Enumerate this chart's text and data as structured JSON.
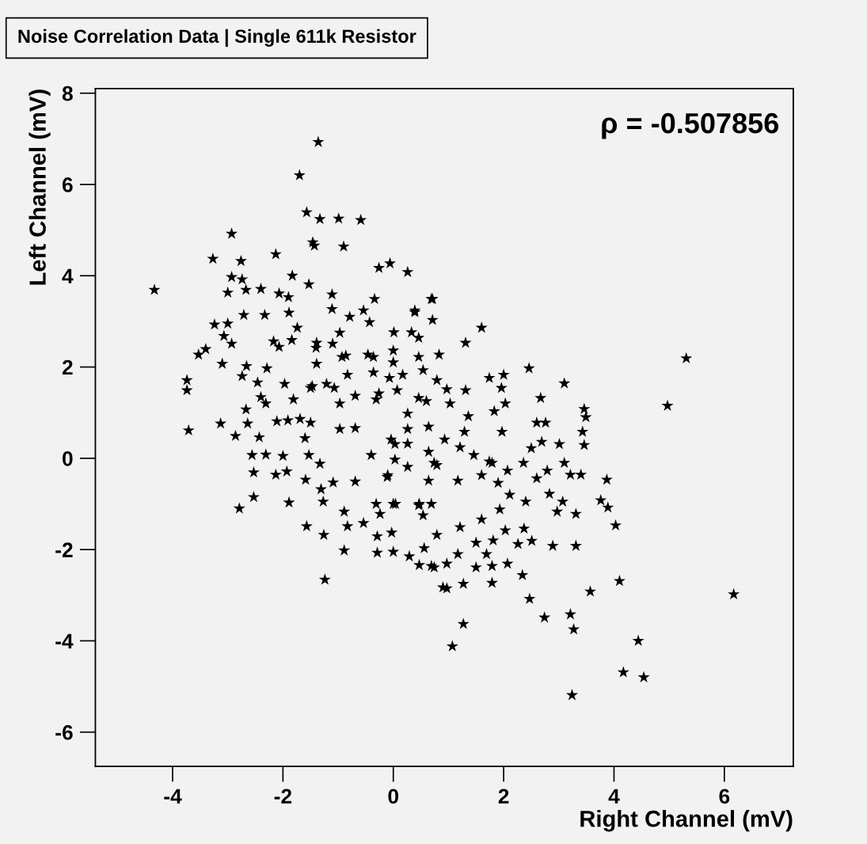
{
  "chart_data": {
    "type": "scatter",
    "title": "Noise Correlation Data | Single 611k Resistor",
    "xlabel": "Right Channel (mV)",
    "ylabel": "Left Channel (mV)",
    "annotations": [
      "ρ = -0.507856"
    ],
    "xlim": [
      -5.4,
      7.25
    ],
    "ylim": [
      -6.75,
      8.1
    ],
    "xticks": [
      -4,
      -2,
      0,
      2,
      4,
      6
    ],
    "yticks": [
      -6,
      -4,
      -2,
      0,
      2,
      4,
      6,
      8
    ],
    "grid": false,
    "legend": false,
    "marker": "star",
    "series": [
      {
        "color": "#000000",
        "x": [
          -4.33,
          -3.74,
          -3.74,
          -3.71,
          -3.53,
          -3.4,
          -3.27,
          -3.24,
          -3.1,
          -3.13,
          -3.07,
          -3.0,
          -3.0,
          -2.93,
          -2.93,
          -2.93,
          -2.86,
          -2.79,
          -2.76,
          -2.74,
          -2.74,
          -2.71,
          -2.67,
          -2.67,
          -2.66,
          -2.64,
          -2.56,
          -2.53,
          -2.53,
          -2.46,
          -2.43,
          -2.4,
          -2.4,
          -2.33,
          -2.31,
          -2.31,
          -2.29,
          -2.17,
          -2.13,
          -2.13,
          -2.11,
          -2.07,
          -2.07,
          -2.0,
          -1.97,
          -1.93,
          -1.91,
          -1.9,
          -1.89,
          -1.89,
          -1.84,
          -1.83,
          -1.81,
          -1.74,
          -1.7,
          -1.69,
          -1.6,
          -1.59,
          -1.57,
          -1.57,
          -1.53,
          -1.53,
          -1.5,
          -1.5,
          -1.47,
          -1.46,
          -1.43,
          -1.4,
          -1.39,
          -1.39,
          -1.36,
          -1.33,
          -1.33,
          -1.31,
          -1.27,
          -1.26,
          -1.24,
          -1.21,
          -1.11,
          -1.11,
          -1.1,
          -1.09,
          -1.07,
          -0.99,
          -0.97,
          -0.97,
          -0.97,
          -0.93,
          -0.9,
          -0.89,
          -0.89,
          -0.86,
          -0.83,
          -0.83,
          -0.79,
          -0.69,
          -0.69,
          -0.69,
          -0.59,
          -0.54,
          -0.54,
          -0.46,
          -0.43,
          -0.4,
          -0.36,
          -0.36,
          -0.34,
          -0.31,
          -0.31,
          -0.29,
          -0.29,
          -0.26,
          -0.26,
          -0.24,
          -0.11,
          -0.1,
          -0.07,
          -0.06,
          -0.04,
          -0.03,
          0.0,
          0.0,
          0.0,
          0.0,
          0.01,
          0.03,
          0.03,
          0.04,
          0.07,
          0.17,
          0.26,
          0.26,
          0.26,
          0.26,
          0.26,
          0.29,
          0.33,
          0.39,
          0.39,
          0.46,
          0.46,
          0.46,
          0.46,
          0.47,
          0.47,
          0.54,
          0.54,
          0.56,
          0.6,
          0.64,
          0.64,
          0.64,
          0.69,
          0.69,
          0.69,
          0.71,
          0.71,
          0.74,
          0.74,
          0.79,
          0.79,
          0.79,
          0.83,
          0.9,
          0.93,
          0.97,
          0.97,
          0.97,
          1.03,
          1.07,
          1.17,
          1.17,
          1.21,
          1.21,
          1.27,
          1.27,
          1.29,
          1.31,
          1.31,
          1.36,
          1.46,
          1.5,
          1.5,
          1.6,
          1.6,
          1.6,
          1.69,
          1.74,
          1.74,
          1.79,
          1.79,
          1.79,
          1.81,
          1.83,
          1.9,
          1.93,
          1.96,
          1.97,
          2.0,
          2.03,
          2.03,
          2.07,
          2.07,
          2.11,
          2.26,
          2.34,
          2.36,
          2.37,
          2.4,
          2.46,
          2.47,
          2.5,
          2.51,
          2.6,
          2.6,
          2.67,
          2.69,
          2.74,
          2.76,
          2.79,
          2.83,
          2.89,
          2.97,
          3.01,
          3.07,
          3.1,
          3.1,
          3.21,
          3.24,
          3.27,
          3.31,
          3.31,
          3.4,
          3.43,
          3.46,
          3.46,
          3.49,
          3.57,
          3.76,
          3.87,
          3.89,
          4.03,
          4.1,
          4.17,
          4.44,
          4.54,
          4.97,
          5.31,
          6.17,
          3.21
        ],
        "values": [
          3.69,
          1.71,
          1.49,
          0.61,
          2.27,
          2.39,
          4.37,
          2.93,
          2.07,
          0.76,
          2.68,
          3.63,
          2.95,
          4.92,
          3.97,
          2.51,
          0.49,
          -1.1,
          4.32,
          3.92,
          1.8,
          3.14,
          3.69,
          1.07,
          2.02,
          0.76,
          0.07,
          -0.85,
          -0.31,
          1.66,
          0.46,
          3.71,
          1.34,
          3.14,
          1.2,
          0.08,
          1.97,
          2.56,
          4.47,
          -0.36,
          0.81,
          3.61,
          2.44,
          0.05,
          1.63,
          -0.29,
          0.83,
          3.53,
          3.19,
          -0.97,
          2.59,
          4.0,
          1.29,
          2.86,
          6.2,
          0.86,
          0.44,
          -0.47,
          5.39,
          -1.49,
          3.81,
          0.07,
          1.54,
          0.78,
          1.58,
          4.73,
          4.66,
          2.42,
          2.07,
          2.53,
          6.93,
          5.24,
          -0.12,
          -0.68,
          -0.95,
          -1.68,
          -2.66,
          1.63,
          3.59,
          3.27,
          2.51,
          -0.53,
          1.54,
          5.25,
          2.75,
          0.64,
          1.2,
          2.22,
          4.64,
          -1.17,
          -2.02,
          2.25,
          1.83,
          -1.49,
          3.1,
          0.66,
          1.37,
          -0.51,
          5.22,
          3.24,
          -1.42,
          2.27,
          2.98,
          0.07,
          1.88,
          2.22,
          3.49,
          1.29,
          -1.0,
          -1.71,
          -2.07,
          1.42,
          4.17,
          -1.22,
          -0.41,
          -0.37,
          1.76,
          4.27,
          0.41,
          -1.63,
          2.36,
          2.1,
          -1.0,
          -2.05,
          2.76,
          0.31,
          -0.03,
          -1.0,
          1.49,
          1.83,
          4.08,
          0.32,
          -0.19,
          0.98,
          0.64,
          -2.15,
          2.76,
          3.2,
          3.24,
          2.64,
          1.32,
          2.22,
          -1.03,
          -1.0,
          -2.34,
          1.93,
          -1.25,
          -1.97,
          1.25,
          0.14,
          -0.49,
          0.69,
          3.49,
          -1.0,
          -2.36,
          3.03,
          3.49,
          -0.1,
          -2.39,
          1.71,
          -0.15,
          -1.68,
          2.27,
          -2.83,
          0.41,
          1.51,
          -2.85,
          -2.31,
          1.2,
          -4.12,
          -0.49,
          -2.1,
          0.24,
          -1.51,
          -3.63,
          -2.75,
          0.58,
          1.49,
          2.53,
          0.92,
          0.07,
          -2.39,
          -1.85,
          -0.37,
          2.86,
          -1.34,
          -2.1,
          1.76,
          -0.07,
          -2.36,
          -2.73,
          -0.1,
          -1.8,
          1.03,
          -0.54,
          -1.12,
          1.54,
          0.58,
          1.83,
          -1.58,
          1.2,
          -2.31,
          -0.27,
          -0.8,
          -1.88,
          -2.56,
          -0.1,
          -1.54,
          -0.95,
          1.97,
          -3.08,
          0.22,
          -1.81,
          -0.44,
          0.78,
          1.32,
          0.36,
          -3.49,
          0.78,
          -0.27,
          -0.78,
          -1.92,
          -1.17,
          0.31,
          -0.95,
          1.64,
          -0.1,
          -0.36,
          -5.19,
          -3.75,
          -1.92,
          -1.22,
          -0.36,
          0.58,
          1.08,
          0.29,
          0.9,
          -2.92,
          -0.92,
          -0.47,
          -1.08,
          -1.47,
          -2.69,
          -4.69,
          -4.0,
          -4.8,
          1.15,
          2.19,
          -2.98,
          -3.42
        ]
      }
    ]
  }
}
